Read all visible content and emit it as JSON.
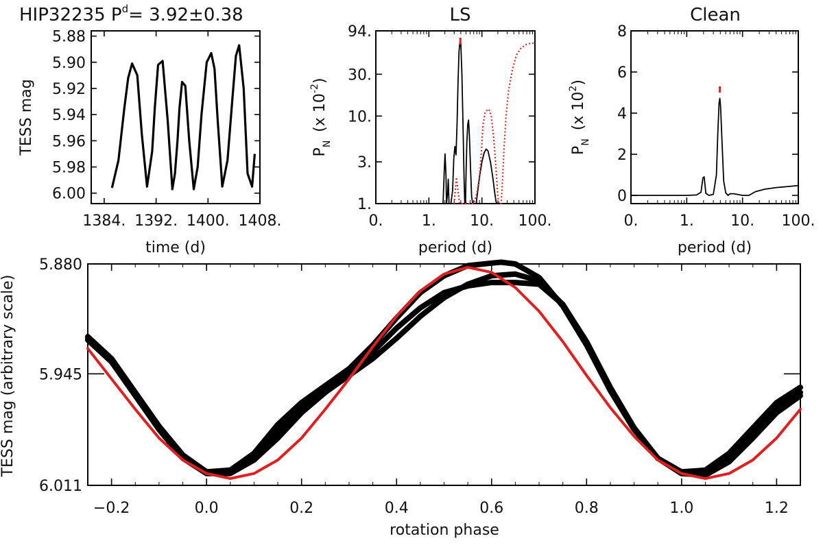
{
  "chart_data": [
    {
      "type": "line",
      "name": "light-curve",
      "title": "HIP32235 P",
      "title_superscript": "d",
      "title_value": "=  3.92±0.38",
      "xlabel": "time (d)",
      "ylabel": "TESS mag",
      "xlim": [
        1382,
        1408
      ],
      "ylim": [
        6.008,
        5.876
      ],
      "xticks": [
        1384,
        1392,
        1400,
        1408
      ],
      "xtick_labels": [
        "1384.",
        "1392.",
        "1400.",
        "1408."
      ],
      "yticks": [
        5.88,
        5.9,
        5.92,
        5.94,
        5.96,
        5.98,
        6.0
      ],
      "ytick_labels": [
        "5.88",
        "5.90",
        "5.92",
        "5.94",
        "5.96",
        "5.98",
        "6.00"
      ],
      "series": [
        {
          "name": "TESS light curve",
          "color": "#000000",
          "x": [
            1385.2,
            1386.2,
            1387.1,
            1387.7,
            1388.3,
            1389.1,
            1389.8,
            1390.6,
            1391.4,
            1391.8,
            1392.3,
            1393.0,
            1393.8,
            1394.5,
            1394.9,
            1395.3,
            1395.6,
            1396.0,
            1396.5,
            1397.1,
            1397.8,
            1398.4,
            1399.0,
            1399.8,
            1400.5,
            1401.0,
            1401.5,
            1402.2,
            1403.0,
            1403.8,
            1404.3,
            1404.8,
            1405.5,
            1406.1,
            1406.8,
            1407.2
          ],
          "y": [
            5.996,
            5.975,
            5.935,
            5.912,
            5.901,
            5.91,
            5.955,
            5.995,
            5.968,
            5.935,
            5.902,
            5.899,
            5.945,
            5.997,
            5.985,
            5.96,
            5.935,
            5.915,
            5.918,
            5.96,
            5.997,
            5.98,
            5.94,
            5.9,
            5.893,
            5.905,
            5.945,
            5.995,
            5.975,
            5.925,
            5.895,
            5.887,
            5.92,
            5.985,
            5.995,
            5.97
          ]
        }
      ]
    },
    {
      "type": "line",
      "name": "ls-periodogram",
      "title": "LS",
      "xlabel": "period (d)",
      "ylabel": "P",
      "ylabel_subscript": "N",
      "ylabel_suffix": "(x 10",
      "ylabel_exponent": "-2",
      "ylabel_close": ")",
      "xscale": "log",
      "yscale": "log",
      "xlim": [
        0.1,
        100
      ],
      "ylim": [
        1,
        94
      ],
      "xticks": [
        0.1,
        1,
        10,
        100
      ],
      "xtick_labels": [
        "0.",
        "1.",
        "10.",
        "100."
      ],
      "yticks": [
        1,
        3,
        10,
        30,
        94
      ],
      "ytick_labels": [
        "1.",
        "3.",
        "10.",
        "30.",
        "94."
      ],
      "peak_marker_period": 3.92,
      "series": [
        {
          "name": "LS power",
          "color": "#000000",
          "style": "solid",
          "x": [
            1.85,
            1.95,
            2.02,
            2.1,
            2.15,
            2.25,
            2.32,
            2.4,
            2.6,
            2.8,
            2.95,
            3.1,
            3.25,
            3.4,
            3.55,
            3.7,
            3.85,
            3.92,
            4.0,
            4.2,
            4.4,
            4.6,
            4.75,
            4.9,
            5.05,
            5.2,
            5.4,
            5.6,
            5.8,
            6.1,
            6.4,
            6.7,
            7.1,
            7.8,
            9.0,
            10.0,
            11.0,
            12.0,
            13.0,
            14.5,
            16.0,
            17.5,
            18.5,
            19.3
          ],
          "y": [
            1.0,
            2.4,
            3.7,
            2.1,
            1.0,
            1.3,
            1.9,
            1.0,
            1.0,
            1.4,
            3.3,
            4.5,
            3.6,
            8.0,
            25.0,
            55.0,
            70.0,
            72.0,
            68.0,
            30.0,
            8.0,
            2.0,
            1.0,
            1.0,
            2.5,
            5.0,
            8.0,
            9.0,
            6.0,
            2.5,
            1.2,
            1.0,
            1.0,
            1.0,
            2.0,
            3.0,
            3.8,
            4.2,
            4.0,
            3.0,
            2.0,
            1.3,
            1.05,
            1.0
          ]
        },
        {
          "name": "window function",
          "color": "#d62a2a",
          "style": "dotted",
          "x": [
            3.0,
            3.3,
            3.8,
            4.6,
            5.8,
            7.0,
            8.0,
            9.0,
            9.8,
            10.5,
            11.5,
            13.0,
            14.0,
            15.0,
            16.5,
            18.5,
            20.0,
            21.0,
            22.0,
            23.0,
            24.0,
            26.0,
            28.5,
            32.0,
            38.0,
            45.0,
            55.0,
            70.0,
            85.0,
            100.0
          ],
          "y": [
            1.0,
            2.0,
            1.0,
            1.0,
            1.0,
            1.0,
            1.3,
            2.0,
            4.0,
            8.0,
            11.0,
            12.0,
            11.5,
            10.0,
            6.0,
            2.5,
            1.2,
            1.0,
            1.0,
            1.0,
            1.5,
            4.0,
            10.0,
            20.0,
            35.0,
            50.0,
            60.0,
            66.0,
            68.0,
            68.0
          ]
        }
      ]
    },
    {
      "type": "line",
      "name": "clean-periodogram",
      "title": "Clean",
      "xlabel": "period (d)",
      "ylabel": "P",
      "ylabel_subscript": "N",
      "ylabel_suffix": "(x 10",
      "ylabel_exponent": "2",
      "ylabel_close": ")",
      "xscale": "log",
      "xlim": [
        0.1,
        100
      ],
      "ylim": [
        -0.4,
        8
      ],
      "xticks": [
        0.1,
        1,
        10,
        100
      ],
      "xtick_labels": [
        "0.",
        "1.",
        "10.",
        "100."
      ],
      "yticks": [
        0,
        2,
        4,
        6,
        8
      ],
      "ytick_labels": [
        "0",
        "2",
        "4",
        "6",
        "8"
      ],
      "peak_marker_period": 3.92,
      "series": [
        {
          "name": "CLEAN power",
          "color": "#000000",
          "x": [
            0.1,
            0.5,
            1.0,
            1.5,
            1.8,
            1.95,
            2.05,
            2.2,
            2.5,
            3.0,
            3.4,
            3.6,
            3.8,
            3.92,
            4.05,
            4.3,
            4.6,
            5.0,
            5.5,
            6.0,
            7.0,
            8.0,
            10.0,
            13.0,
            17.0,
            25.0,
            40.0,
            60.0,
            100.0
          ],
          "y": [
            0.0,
            0.0,
            0.0,
            0.02,
            0.15,
            0.85,
            0.9,
            0.1,
            0.0,
            0.05,
            1.0,
            3.0,
            4.5,
            4.72,
            4.3,
            2.5,
            0.7,
            0.12,
            0.0,
            0.08,
            0.08,
            0.05,
            0.0,
            0.0,
            0.18,
            0.3,
            0.38,
            0.42,
            0.48
          ]
        }
      ]
    },
    {
      "type": "scatter",
      "name": "phased-light-curve",
      "xlabel": "rotation phase",
      "ylabel": "TESS mag (arbitrary scale)",
      "xlim": [
        -0.25,
        1.25
      ],
      "ylim": [
        6.011,
        5.88
      ],
      "xticks": [
        -0.2,
        0.0,
        0.2,
        0.4,
        0.6,
        0.8,
        1.0,
        1.2
      ],
      "xtick_labels": [
        "−0.2",
        "0.0",
        "0.2",
        "0.4",
        "0.6",
        "0.8",
        "1.0",
        "1.2"
      ],
      "yticks": [
        5.88,
        5.945,
        6.011
      ],
      "ytick_labels": [
        "5.880",
        "5.945",
        "6.011"
      ],
      "series": [
        {
          "name": "phased data (cycles 1)",
          "color": "#000000",
          "x": [
            -0.25,
            -0.2,
            -0.15,
            -0.1,
            -0.05,
            0.0,
            0.05,
            0.1,
            0.15,
            0.2,
            0.25,
            0.3,
            0.35,
            0.4,
            0.45,
            0.5,
            0.55,
            0.6,
            0.62,
            0.65,
            0.7,
            0.75,
            0.8,
            0.85,
            0.9,
            0.95,
            1.0,
            1.05,
            1.1,
            1.15,
            1.2,
            1.25
          ],
          "y": [
            5.923,
            5.936,
            5.956,
            5.976,
            5.993,
            6.003,
            6.002,
            5.992,
            5.975,
            5.962,
            5.952,
            5.942,
            5.928,
            5.912,
            5.897,
            5.887,
            5.881,
            5.8795,
            5.879,
            5.88,
            5.888,
            5.905,
            5.928,
            5.955,
            5.978,
            5.995,
            6.003,
            6.002,
            5.992,
            5.977,
            5.962,
            5.953
          ]
        },
        {
          "name": "phased data (cycles 2)",
          "color": "#000000",
          "x": [
            -0.25,
            -0.2,
            -0.15,
            -0.1,
            -0.05,
            0.0,
            0.05,
            0.1,
            0.15,
            0.2,
            0.25,
            0.3,
            0.35,
            0.4,
            0.45,
            0.5,
            0.55,
            0.6,
            0.65,
            0.7,
            0.75,
            0.8,
            0.85,
            0.9,
            0.95,
            1.0,
            1.05,
            1.1,
            1.15,
            1.2,
            1.25
          ],
          "y": [
            5.925,
            5.938,
            5.958,
            5.978,
            5.995,
            6.004,
            6.004,
            5.996,
            5.983,
            5.968,
            5.956,
            5.946,
            5.936,
            5.924,
            5.911,
            5.9,
            5.892,
            5.887,
            5.886,
            5.89,
            5.904,
            5.926,
            5.953,
            5.977,
            5.995,
            6.004,
            6.005,
            5.997,
            5.983,
            5.968,
            5.958
          ]
        },
        {
          "name": "phased data (cycles 3)",
          "color": "#000000",
          "x": [
            -0.25,
            -0.2,
            -0.15,
            -0.1,
            -0.05,
            0.0,
            0.05,
            0.1,
            0.15,
            0.2,
            0.25,
            0.3,
            0.35,
            0.4,
            0.45,
            0.5,
            0.55,
            0.6,
            0.65,
            0.7,
            0.75,
            0.8,
            0.85,
            0.9,
            0.95,
            1.0,
            1.05,
            1.1,
            1.15,
            1.2,
            1.25
          ],
          "y": [
            5.924,
            5.937,
            5.957,
            5.977,
            5.994,
            6.003,
            6.003,
            5.994,
            5.979,
            5.965,
            5.954,
            5.944,
            5.932,
            5.918,
            5.906,
            5.897,
            5.893,
            5.891,
            5.891,
            5.892,
            5.904,
            5.927,
            5.954,
            5.977,
            5.995,
            6.004,
            6.004,
            5.995,
            5.98,
            5.965,
            5.956
          ]
        },
        {
          "name": "sinusoidal fit",
          "color": "#e02020",
          "x": [
            -0.25,
            -0.2,
            -0.15,
            -0.1,
            -0.05,
            0.0,
            0.05,
            0.1,
            0.15,
            0.2,
            0.25,
            0.3,
            0.35,
            0.4,
            0.45,
            0.5,
            0.55,
            0.6,
            0.65,
            0.7,
            0.75,
            0.8,
            0.85,
            0.9,
            0.95,
            1.0,
            1.05,
            1.1,
            1.15,
            1.2,
            1.25
          ],
          "y": [
            5.93,
            5.948,
            5.966,
            5.983,
            5.996,
            6.004,
            6.007,
            6.004,
            5.996,
            5.983,
            5.966,
            5.948,
            5.929,
            5.911,
            5.896,
            5.886,
            5.882,
            5.885,
            5.894,
            5.908,
            5.926,
            5.946,
            5.965,
            5.982,
            5.996,
            6.004,
            6.007,
            6.004,
            5.996,
            5.983,
            5.966
          ]
        }
      ]
    }
  ]
}
